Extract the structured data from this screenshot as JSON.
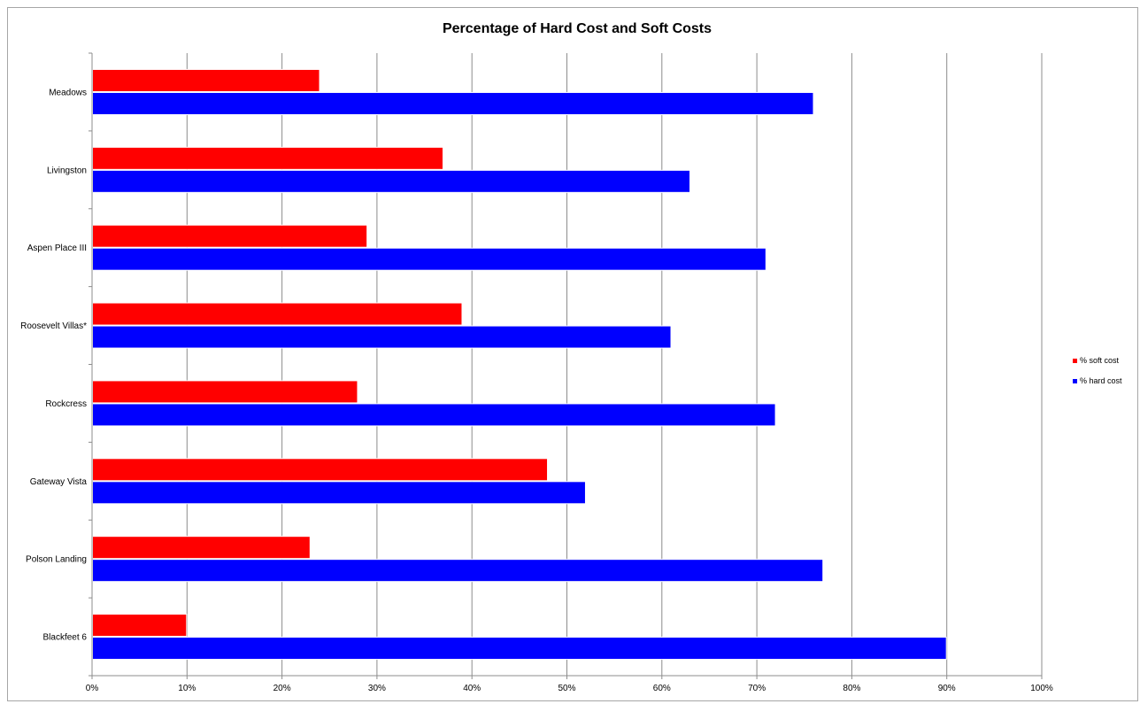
{
  "chart_data": {
    "type": "bar",
    "orientation": "horizontal",
    "title": "Percentage of Hard Cost and Soft Costs",
    "categories": [
      "Meadows",
      "Livingston",
      "Aspen Place III",
      "Roosevelt Villas*",
      "Rockcress",
      "Gateway Vista",
      "Polson Landing",
      "Blackfeet 6"
    ],
    "series": [
      {
        "name": "% soft cost",
        "color": "#ff0000",
        "values": [
          0.24,
          0.37,
          0.29,
          0.39,
          0.28,
          0.48,
          0.23,
          0.1
        ]
      },
      {
        "name": "% hard cost",
        "color": "#0000ff",
        "values": [
          0.76,
          0.63,
          0.71,
          0.61,
          0.72,
          0.52,
          0.77,
          0.9
        ]
      }
    ],
    "xlim": [
      0,
      1
    ],
    "xticks": [
      "0%",
      "10%",
      "20%",
      "30%",
      "40%",
      "50%",
      "60%",
      "70%",
      "80%",
      "90%",
      "100%"
    ],
    "grid": true,
    "legend_position": "right"
  }
}
